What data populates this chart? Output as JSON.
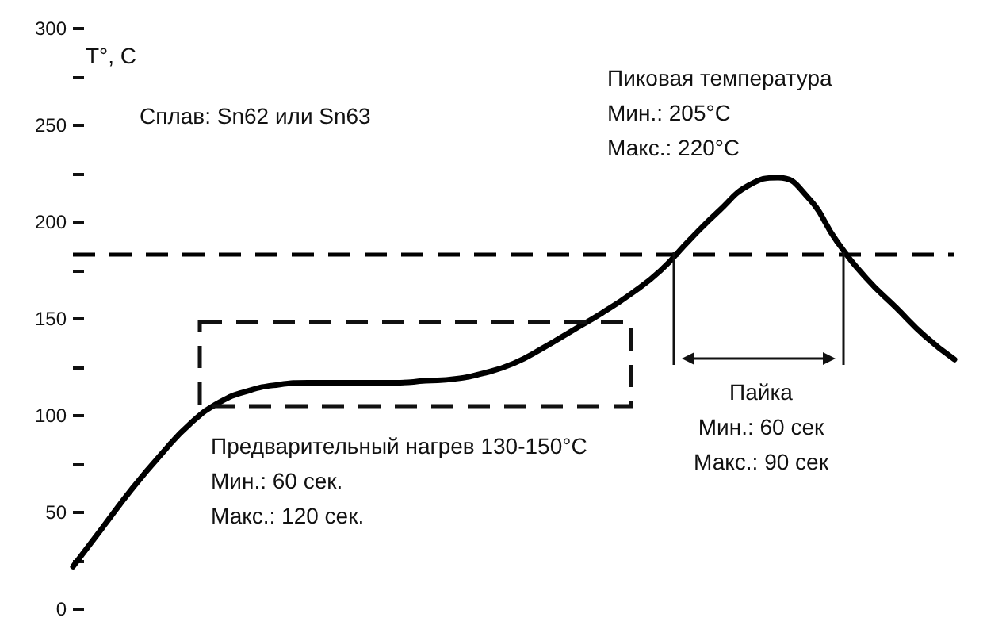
{
  "chart_data": {
    "type": "line",
    "ylabel": "T°, C",
    "categories": [
      null,
      null,
      null,
      null,
      null,
      null,
      null,
      null,
      null,
      null,
      null,
      null,
      null,
      null,
      null,
      null,
      null,
      null,
      null,
      null,
      null,
      null,
      null,
      null,
      null,
      null,
      null,
      null,
      null,
      null,
      null
    ],
    "series": [
      {
        "color": "#000000",
        "values": [
          22,
          42,
          62,
          80,
          96,
          107,
          113,
          116,
          117,
          117,
          117,
          117,
          118,
          119,
          122,
          127,
          135,
          144,
          153,
          163,
          175,
          191,
          206,
          219,
          223,
          213,
          190,
          171,
          156,
          141,
          129
        ]
      }
    ],
    "ylim": [
      0,
      300
    ],
    "yticks": [
      0,
      {
        "value": 25,
        "label": null
      },
      50,
      {
        "value": 75,
        "label": null
      },
      100,
      {
        "value": 125,
        "label": null
      },
      150,
      {
        "value": 175,
        "label": null
      },
      200,
      {
        "value": 225,
        "label": null
      },
      250,
      {
        "value": 275,
        "label": null
      },
      300
    ],
    "tick_labels": "y",
    "grid": false,
    "marker": "none",
    "line_style": "solid",
    "ref_lines": [
      {
        "axis": "y",
        "value": 183,
        "color": "#000000",
        "line_style": "dashed"
      }
    ],
    "annotations": [
      "Сплав: Sn62 или Sn63",
      "Пиковая температура\nМин.: 205°C\nМакс.: 220°C",
      "Предварительный нагрев 130-150°C\nМин.: 60 сек.\nМакс.: 120 сек.",
      "Пайка\nМин.: 60 сек\nМакс.: 90 сек"
    ]
  }
}
